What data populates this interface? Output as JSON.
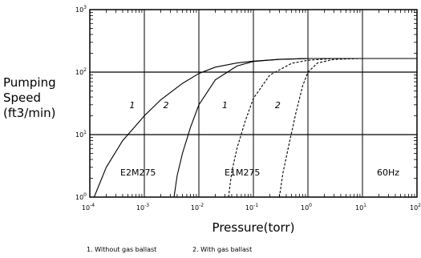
{
  "chart_data": {
    "type": "line",
    "ylabel_lines": [
      "Pumping",
      "Speed",
      "(ft3/min)"
    ],
    "xlabel": "Pressure(torr)",
    "x_scale": "log",
    "y_scale": "log",
    "xlim": [
      0.0001,
      100
    ],
    "ylim": [
      1,
      1000
    ],
    "grid": true,
    "x_ticks": [
      {
        "value": 0.0001,
        "base": "10",
        "exp": "-4"
      },
      {
        "value": 0.001,
        "base": "10",
        "exp": "-3"
      },
      {
        "value": 0.01,
        "base": "10",
        "exp": "-2"
      },
      {
        "value": 0.1,
        "base": "10",
        "exp": "-1"
      },
      {
        "value": 1,
        "base": "10",
        "exp": "0"
      },
      {
        "value": 10,
        "base": "10",
        "exp": "1"
      },
      {
        "value": 100,
        "base": "10",
        "exp": "2"
      }
    ],
    "y_ticks": [
      {
        "value": 1,
        "base": "10",
        "exp": "0"
      },
      {
        "value": 10,
        "base": "10",
        "exp": "1"
      },
      {
        "value": 100,
        "base": "10",
        "exp": "2"
      },
      {
        "value": 1000,
        "base": "10",
        "exp": "3"
      }
    ],
    "series": [
      {
        "style": "solid",
        "points": [
          [
            0.00012,
            1.0
          ],
          [
            0.0002,
            3.0
          ],
          [
            0.0004,
            8.0
          ],
          [
            0.0007,
            14.0
          ],
          [
            0.001,
            20.0
          ],
          [
            0.002,
            36.0
          ],
          [
            0.005,
            66.0
          ],
          [
            0.01,
            95.0
          ],
          [
            0.02,
            120.0
          ],
          [
            0.05,
            140.0
          ],
          [
            0.1,
            150.0
          ],
          [
            0.3,
            160.0
          ],
          [
            1,
            165.0
          ],
          [
            10,
            165.0
          ],
          [
            100,
            165.0
          ]
        ]
      },
      {
        "style": "solid",
        "points": [
          [
            0.0035,
            1.0
          ],
          [
            0.004,
            2.2
          ],
          [
            0.005,
            5.0
          ],
          [
            0.007,
            13.0
          ],
          [
            0.01,
            30.0
          ],
          [
            0.02,
            75.0
          ],
          [
            0.05,
            125.0
          ],
          [
            0.1,
            148.0
          ],
          [
            0.3,
            160.0
          ],
          [
            1,
            165.0
          ],
          [
            10,
            165.0
          ],
          [
            100,
            165.0
          ]
        ]
      },
      {
        "style": "dashed",
        "points": [
          [
            0.035,
            1.0
          ],
          [
            0.04,
            2.5
          ],
          [
            0.05,
            6.0
          ],
          [
            0.07,
            16.0
          ],
          [
            0.1,
            38.0
          ],
          [
            0.2,
            90.0
          ],
          [
            0.5,
            138.0
          ],
          [
            1,
            155.0
          ],
          [
            3,
            165.0
          ],
          [
            10,
            165.0
          ],
          [
            100,
            165.0
          ]
        ]
      },
      {
        "style": "dashed",
        "points": [
          [
            0.3,
            1.0
          ],
          [
            0.35,
            2.5
          ],
          [
            0.45,
            7.0
          ],
          [
            0.6,
            22.0
          ],
          [
            0.8,
            60.0
          ],
          [
            1,
            100.0
          ],
          [
            1.5,
            140.0
          ],
          [
            3,
            160.0
          ],
          [
            10,
            165.0
          ],
          [
            100,
            165.0
          ]
        ]
      }
    ],
    "curve_labels": [
      {
        "text": "1",
        "x": 0.0006,
        "y": 30
      },
      {
        "text": "2",
        "x": 0.0025,
        "y": 30
      },
      {
        "text": "1",
        "x": 0.03,
        "y": 30
      },
      {
        "text": "2",
        "x": 0.28,
        "y": 30
      }
    ],
    "annotations": {
      "left_model": "E2M275",
      "right_model": "E1M275",
      "frequency": "60Hz"
    },
    "footnotes": {
      "note1": "1.  Without gas ballast",
      "note2": "2.  With gas ballast"
    }
  }
}
